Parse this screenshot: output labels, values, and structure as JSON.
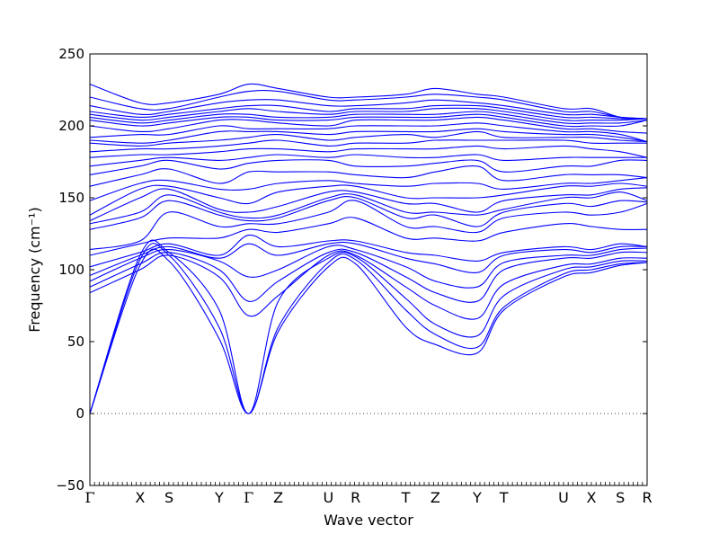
{
  "chart_data": {
    "type": "line",
    "title": "",
    "xlabel": "Wave vector",
    "ylabel": "Frequency (cm⁻¹)",
    "ylim": [
      -50,
      250
    ],
    "yticks": [
      -50,
      0,
      50,
      100,
      150,
      200,
      250
    ],
    "grid": false,
    "line_color": "#0000ff",
    "zero_line": {
      "y": 0,
      "style": "dotted",
      "color": "#000000"
    },
    "k_points": [
      "Γ",
      "X",
      "S",
      "Y",
      "Γ",
      "Z",
      "U",
      "R",
      "T",
      "Z",
      "Y",
      "T",
      "U",
      "X",
      "S",
      "R"
    ],
    "k_positions": [
      0,
      0.09,
      0.142,
      0.232,
      0.285,
      0.338,
      0.428,
      0.477,
      0.567,
      0.62,
      0.695,
      0.743,
      0.85,
      0.9,
      0.952,
      1.0
    ],
    "series": [
      {
        "values": [
          0,
          103,
          106,
          52,
          0,
          57,
          102,
          104,
          60,
          48,
          42,
          72,
          95,
          98,
          103,
          105
        ]
      },
      {
        "values": [
          0,
          107,
          110,
          60,
          0,
          60,
          105,
          107,
          72,
          55,
          46,
          74,
          97,
          100,
          104,
          105
        ]
      },
      {
        "values": [
          0,
          110,
          112,
          72,
          0,
          78,
          108,
          109,
          80,
          62,
          54,
          82,
          100,
          102,
          106,
          106
        ]
      },
      {
        "values": [
          84,
          100,
          110,
          95,
          68,
          82,
          110,
          110,
          88,
          75,
          66,
          90,
          103,
          104,
          108,
          108
        ]
      },
      {
        "values": [
          88,
          104,
          112,
          100,
          78,
          92,
          112,
          112,
          95,
          84,
          78,
          100,
          108,
          108,
          112,
          112
        ]
      },
      {
        "values": [
          92,
          108,
          114,
          106,
          95,
          100,
          116,
          114,
          102,
          92,
          88,
          105,
          110,
          110,
          114,
          115
        ]
      },
      {
        "values": [
          96,
          110,
          116,
          108,
          118,
          110,
          118,
          118,
          108,
          104,
          98,
          110,
          114,
          112,
          116,
          116
        ]
      },
      {
        "values": [
          102,
          112,
          118,
          110,
          124,
          116,
          120,
          120,
          112,
          110,
          106,
          112,
          116,
          114,
          118,
          116
        ]
      },
      {
        "values": [
          110,
          118,
          122,
          122,
          128,
          126,
          132,
          136,
          122,
          122,
          120,
          126,
          132,
          130,
          128,
          128
        ]
      },
      {
        "values": [
          114,
          120,
          140,
          130,
          132,
          132,
          140,
          148,
          130,
          130,
          126,
          136,
          140,
          138,
          140,
          146
        ]
      },
      {
        "values": [
          128,
          136,
          148,
          138,
          134,
          136,
          148,
          150,
          136,
          138,
          130,
          140,
          146,
          144,
          148,
          147
        ]
      },
      {
        "values": [
          132,
          140,
          152,
          140,
          136,
          138,
          150,
          152,
          140,
          140,
          138,
          142,
          150,
          150,
          154,
          148
        ]
      },
      {
        "values": [
          134,
          150,
          156,
          142,
          140,
          144,
          154,
          154,
          146,
          146,
          140,
          148,
          152,
          152,
          156,
          157
        ]
      },
      {
        "values": [
          138,
          156,
          158,
          150,
          146,
          154,
          158,
          158,
          150,
          150,
          150,
          152,
          158,
          158,
          160,
          158
        ]
      },
      {
        "values": [
          148,
          160,
          162,
          156,
          156,
          160,
          162,
          160,
          158,
          160,
          160,
          156,
          160,
          160,
          162,
          164
        ]
      },
      {
        "values": [
          158,
          166,
          170,
          160,
          168,
          168,
          168,
          166,
          164,
          168,
          172,
          162,
          166,
          166,
          166,
          164
        ]
      },
      {
        "values": [
          166,
          172,
          176,
          170,
          174,
          176,
          176,
          172,
          172,
          174,
          176,
          168,
          172,
          172,
          176,
          176
        ]
      },
      {
        "values": [
          172,
          176,
          178,
          176,
          178,
          180,
          178,
          180,
          178,
          178,
          180,
          176,
          178,
          178,
          178,
          178
        ]
      },
      {
        "values": [
          178,
          180,
          180,
          182,
          184,
          184,
          182,
          184,
          184,
          184,
          186,
          184,
          186,
          184,
          182,
          178
        ]
      },
      {
        "values": [
          182,
          184,
          184,
          186,
          188,
          190,
          186,
          188,
          188,
          190,
          190,
          190,
          190,
          188,
          188,
          188
        ]
      },
      {
        "values": [
          188,
          186,
          188,
          190,
          192,
          194,
          190,
          192,
          194,
          192,
          196,
          192,
          192,
          192,
          190,
          189
        ]
      },
      {
        "values": [
          190,
          188,
          190,
          196,
          196,
          196,
          194,
          196,
          196,
          196,
          198,
          196,
          194,
          194,
          192,
          189
        ]
      },
      {
        "values": [
          192,
          194,
          194,
          200,
          198,
          198,
          198,
          200,
          200,
          200,
          202,
          200,
          196,
          196,
          194,
          189
        ]
      },
      {
        "values": [
          200,
          196,
          198,
          204,
          204,
          202,
          200,
          204,
          204,
          204,
          206,
          204,
          198,
          198,
          196,
          195
        ]
      },
      {
        "values": [
          204,
          200,
          202,
          206,
          206,
          204,
          204,
          206,
          206,
          206,
          208,
          206,
          200,
          200,
          200,
          204
        ]
      },
      {
        "values": [
          206,
          202,
          204,
          208,
          208,
          206,
          206,
          208,
          208,
          208,
          210,
          208,
          202,
          202,
          202,
          204
        ]
      },
      {
        "values": [
          208,
          204,
          206,
          210,
          212,
          210,
          208,
          210,
          210,
          212,
          212,
          210,
          204,
          204,
          204,
          205
        ]
      },
      {
        "values": [
          210,
          206,
          208,
          212,
          214,
          214,
          210,
          212,
          212,
          214,
          214,
          212,
          206,
          206,
          205,
          205
        ]
      },
      {
        "values": [
          214,
          208,
          210,
          216,
          218,
          218,
          214,
          214,
          216,
          218,
          216,
          214,
          208,
          208,
          206,
          205
        ]
      },
      {
        "values": [
          220,
          212,
          212,
          220,
          224,
          224,
          218,
          218,
          220,
          222,
          220,
          218,
          210,
          210,
          206,
          205
        ]
      },
      {
        "values": [
          229,
          216,
          216,
          222,
          229,
          226,
          220,
          220,
          222,
          226,
          222,
          220,
          212,
          212,
          206,
          205
        ]
      }
    ]
  }
}
